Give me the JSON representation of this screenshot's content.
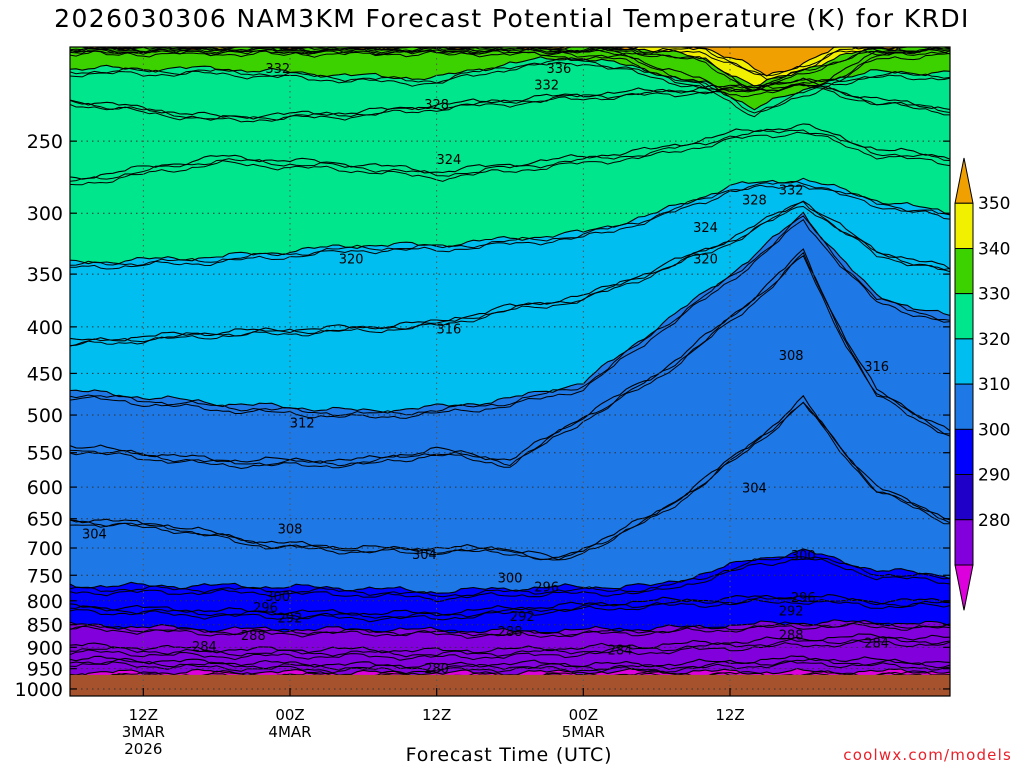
{
  "chart_data": {
    "type": "heatmap",
    "title": "2026030306 NAM3KM Forecast Potential Temperature (K) for KRDI",
    "xlabel": "Forecast Time (UTC)",
    "ylabel": "",
    "y_scale": "log",
    "y_inverted": true,
    "y_ticks": [
      250,
      300,
      350,
      400,
      450,
      500,
      550,
      600,
      650,
      700,
      750,
      800,
      850,
      900,
      950,
      1000
    ],
    "ylim": [
      1000,
      200
    ],
    "x_ticks": [
      {
        "time": "2026-03-03T12:00Z",
        "lines": [
          "12Z",
          "3MAR",
          "2026"
        ]
      },
      {
        "time": "2026-03-04T00:00Z",
        "lines": [
          "00Z",
          "4MAR"
        ]
      },
      {
        "time": "2026-03-04T12:00Z",
        "lines": [
          "12Z"
        ]
      },
      {
        "time": "2026-03-05T00:00Z",
        "lines": [
          "00Z",
          "5MAR"
        ]
      },
      {
        "time": "2026-03-05T12:00Z",
        "lines": [
          "12Z"
        ]
      }
    ],
    "xlim": [
      "2026-03-03T06:00Z",
      "2026-03-06T06:00Z"
    ],
    "grid": true,
    "surface_pressure_hPa": 965,
    "colorbar": {
      "levels": [
        280,
        290,
        300,
        310,
        320,
        330,
        340,
        350
      ],
      "colors": [
        "#dc00dc",
        "#8200dc",
        "#1e00c8",
        "#0000ff",
        "#1e78e6",
        "#00bef0",
        "#00e68c",
        "#3cd200",
        "#f0f000",
        "#f0a000"
      ],
      "ground_color": "#a5522d"
    },
    "bands": [
      {
        "theta": 280,
        "ctrl": [
          [
            0,
            960
          ],
          [
            12,
            958
          ],
          [
            24,
            960
          ],
          [
            30,
            961
          ],
          [
            48,
            957
          ],
          [
            60,
            958
          ],
          [
            72,
            956
          ]
        ]
      },
      {
        "theta": 284,
        "ctrl": [
          [
            0,
            925
          ],
          [
            12,
            935
          ],
          [
            24,
            940
          ],
          [
            30,
            942
          ],
          [
            36,
            937
          ],
          [
            48,
            940
          ],
          [
            60,
            925
          ],
          [
            66,
            930
          ],
          [
            72,
            935
          ]
        ]
      },
      {
        "theta": 288,
        "ctrl": [
          [
            0,
            895
          ],
          [
            12,
            905
          ],
          [
            24,
            905
          ],
          [
            30,
            908
          ],
          [
            36,
            905
          ],
          [
            48,
            895
          ],
          [
            60,
            880
          ],
          [
            66,
            875
          ],
          [
            72,
            880
          ]
        ]
      },
      {
        "theta": 292,
        "ctrl": [
          [
            0,
            850
          ],
          [
            12,
            860
          ],
          [
            24,
            860
          ],
          [
            30,
            862
          ],
          [
            36,
            865
          ],
          [
            48,
            858
          ],
          [
            60,
            845
          ],
          [
            66,
            845
          ],
          [
            72,
            850
          ]
        ]
      },
      {
        "theta": 296,
        "ctrl": [
          [
            0,
            810
          ],
          [
            12,
            820
          ],
          [
            24,
            825
          ],
          [
            30,
            825
          ],
          [
            36,
            815
          ],
          [
            48,
            800
          ],
          [
            60,
            790
          ],
          [
            66,
            800
          ],
          [
            72,
            800
          ]
        ]
      },
      {
        "theta": 300,
        "ctrl": [
          [
            0,
            770
          ],
          [
            12,
            770
          ],
          [
            24,
            775
          ],
          [
            30,
            782
          ],
          [
            36,
            775
          ],
          [
            48,
            770
          ],
          [
            56,
            720
          ],
          [
            60,
            705
          ],
          [
            66,
            740
          ],
          [
            72,
            750
          ]
        ]
      },
      {
        "theta": 304,
        "ctrl": [
          [
            0,
            650
          ],
          [
            8,
            660
          ],
          [
            16,
            690
          ],
          [
            24,
            700
          ],
          [
            30,
            700
          ],
          [
            36,
            700
          ],
          [
            40,
            720
          ],
          [
            48,
            640
          ],
          [
            54,
            560
          ],
          [
            60,
            480
          ],
          [
            66,
            600
          ],
          [
            72,
            650
          ]
        ]
      },
      {
        "theta": 308,
        "ctrl": [
          [
            0,
            540
          ],
          [
            12,
            560
          ],
          [
            24,
            560
          ],
          [
            30,
            545
          ],
          [
            36,
            560
          ],
          [
            42,
            500
          ],
          [
            48,
            450
          ],
          [
            54,
            390
          ],
          [
            60,
            330
          ],
          [
            66,
            470
          ],
          [
            72,
            520
          ]
        ]
      },
      {
        "theta": 312,
        "ctrl": [
          [
            0,
            470
          ],
          [
            12,
            485
          ],
          [
            24,
            495
          ],
          [
            30,
            490
          ],
          [
            36,
            480
          ],
          [
            42,
            460
          ],
          [
            48,
            400
          ],
          [
            54,
            350
          ],
          [
            60,
            300
          ],
          [
            66,
            370
          ],
          [
            72,
            390
          ]
        ]
      },
      {
        "theta": 316,
        "ctrl": [
          [
            0,
            415
          ],
          [
            12,
            405
          ],
          [
            24,
            400
          ],
          [
            30,
            395
          ],
          [
            36,
            380
          ],
          [
            42,
            370
          ],
          [
            48,
            345
          ],
          [
            54,
            320
          ],
          [
            60,
            290
          ],
          [
            66,
            330
          ],
          [
            72,
            345
          ]
        ]
      },
      {
        "theta": 320,
        "ctrl": [
          [
            0,
            340
          ],
          [
            12,
            335
          ],
          [
            24,
            325
          ],
          [
            30,
            325
          ],
          [
            36,
            320
          ],
          [
            42,
            315
          ],
          [
            48,
            300
          ],
          [
            54,
            280
          ],
          [
            60,
            275
          ],
          [
            66,
            290
          ],
          [
            72,
            300
          ]
        ]
      },
      {
        "theta": 324,
        "ctrl": [
          [
            0,
            275
          ],
          [
            12,
            260
          ],
          [
            24,
            265
          ],
          [
            30,
            270
          ],
          [
            36,
            265
          ],
          [
            42,
            260
          ],
          [
            48,
            255
          ],
          [
            54,
            245
          ],
          [
            60,
            240
          ],
          [
            66,
            255
          ],
          [
            72,
            260
          ]
        ]
      },
      {
        "theta": 328,
        "ctrl": [
          [
            0,
            225
          ],
          [
            12,
            235
          ],
          [
            24,
            232
          ],
          [
            30,
            228
          ],
          [
            36,
            225
          ],
          [
            42,
            222
          ],
          [
            48,
            220
          ],
          [
            54,
            218
          ],
          [
            60,
            215
          ],
          [
            66,
            225
          ],
          [
            72,
            230
          ]
        ]
      },
      {
        "theta": 332,
        "ctrl": [
          [
            0,
            208
          ],
          [
            12,
            208
          ],
          [
            24,
            212
          ],
          [
            30,
            213
          ],
          [
            36,
            205
          ],
          [
            42,
            202
          ],
          [
            48,
            210
          ],
          [
            54,
            220
          ],
          [
            60,
            215
          ],
          [
            66,
            210
          ],
          [
            72,
            210
          ]
        ]
      },
      {
        "theta": 336,
        "ctrl": [
          [
            0,
            197
          ],
          [
            36,
            197
          ],
          [
            45,
            200
          ],
          [
            52,
            215
          ],
          [
            56,
            230
          ],
          [
            60,
            220
          ],
          [
            66,
            200
          ],
          [
            72,
            197
          ]
        ]
      },
      {
        "theta": 340,
        "ctrl": [
          [
            0,
            197
          ],
          [
            46,
            197
          ],
          [
            52,
            203
          ],
          [
            56,
            218
          ],
          [
            60,
            208
          ],
          [
            66,
            197
          ],
          [
            72,
            197
          ]
        ]
      },
      {
        "theta": 350,
        "ctrl": [
          [
            0,
            197
          ],
          [
            52,
            197
          ],
          [
            55,
            205
          ],
          [
            57,
            212
          ],
          [
            60,
            205
          ],
          [
            63,
            197
          ],
          [
            72,
            197
          ]
        ]
      }
    ],
    "contour_labels": [
      {
        "text": "332",
        "t": 17,
        "p": 208
      },
      {
        "text": "336",
        "t": 40,
        "p": 208
      },
      {
        "text": "332",
        "t": 39,
        "p": 217
      },
      {
        "text": "328",
        "t": 30,
        "p": 228
      },
      {
        "text": "324",
        "t": 31,
        "p": 262
      },
      {
        "text": "332",
        "t": 59,
        "p": 283
      },
      {
        "text": "328",
        "t": 56,
        "p": 290
      },
      {
        "text": "324",
        "t": 52,
        "p": 311
      },
      {
        "text": "320",
        "t": 23,
        "p": 337
      },
      {
        "text": "320",
        "t": 52,
        "p": 337
      },
      {
        "text": "316",
        "t": 31,
        "p": 402
      },
      {
        "text": "316",
        "t": 66,
        "p": 442
      },
      {
        "text": "308",
        "t": 59,
        "p": 430
      },
      {
        "text": "312",
        "t": 19,
        "p": 510
      },
      {
        "text": "304",
        "t": 56,
        "p": 601
      },
      {
        "text": "304",
        "t": 2,
        "p": 676
      },
      {
        "text": "308",
        "t": 18,
        "p": 667
      },
      {
        "text": "304",
        "t": 29,
        "p": 712
      },
      {
        "text": "300",
        "t": 60,
        "p": 713
      },
      {
        "text": "300",
        "t": 36,
        "p": 755
      },
      {
        "text": "296",
        "t": 39,
        "p": 773
      },
      {
        "text": "300",
        "t": 17,
        "p": 791
      },
      {
        "text": "296",
        "t": 60,
        "p": 793
      },
      {
        "text": "296",
        "t": 16,
        "p": 814
      },
      {
        "text": "292",
        "t": 59,
        "p": 821
      },
      {
        "text": "292",
        "t": 18,
        "p": 836
      },
      {
        "text": "292",
        "t": 37,
        "p": 832
      },
      {
        "text": "288",
        "t": 15,
        "p": 874
      },
      {
        "text": "288",
        "t": 36,
        "p": 865
      },
      {
        "text": "288",
        "t": 59,
        "p": 872
      },
      {
        "text": "284",
        "t": 66,
        "p": 890
      },
      {
        "text": "284",
        "t": 11,
        "p": 898
      },
      {
        "text": "284",
        "t": 45,
        "p": 906
      },
      {
        "text": "280",
        "t": 30,
        "p": 950
      }
    ]
  },
  "credit": "coolwx.com/models"
}
